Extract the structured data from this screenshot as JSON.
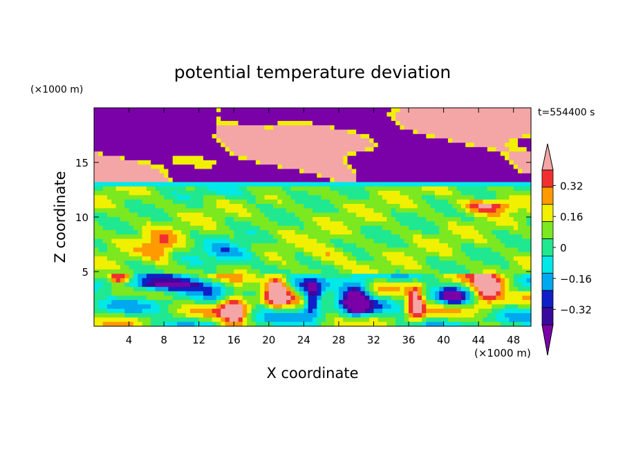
{
  "chart_data": {
    "type": "heatmap",
    "title": "potential temperature deviation",
    "xlabel": "X coordinate",
    "ylabel": "Z coordinate",
    "x_unit": "(×1000 m)",
    "y_unit": "(×1000 m)",
    "time_label": "t=554400 s",
    "xlim": [
      0,
      50
    ],
    "ylim": [
      0,
      20
    ],
    "x_ticks": [
      4,
      8,
      12,
      16,
      20,
      24,
      28,
      32,
      36,
      40,
      44,
      48
    ],
    "y_ticks": [
      5,
      10,
      15
    ],
    "colorbar": {
      "levels": [
        -0.4,
        -0.32,
        -0.24,
        -0.16,
        -0.08,
        0,
        0.08,
        0.16,
        0.24,
        0.32,
        0.4
      ],
      "tick_labels": [
        "0.32",
        "0.16",
        "0",
        "−0.16",
        "−0.32"
      ],
      "tick_values": [
        0.32,
        0.16,
        0,
        -0.16,
        -0.32
      ],
      "colors": [
        "#7a00a8",
        "#3a0a9e",
        "#1020c8",
        "#00a8f0",
        "#00e8e8",
        "#20e890",
        "#7ce820",
        "#f0f000",
        "#ff9a00",
        "#f03030",
        "#f4a6a6"
      ],
      "extend": "both"
    }
  }
}
